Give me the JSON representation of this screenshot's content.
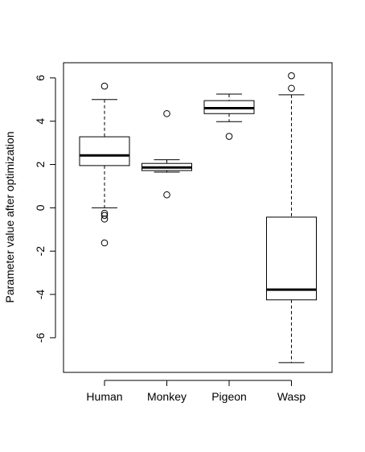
{
  "chart_data": {
    "type": "boxplot",
    "title": "",
    "xlabel": "",
    "ylabel": "Parameter value after optimization",
    "ylim": [
      -7.6,
      6.7
    ],
    "yticks": [
      -6,
      -4,
      -2,
      0,
      2,
      4,
      6
    ],
    "ytick_labels": [
      "-6",
      "-4",
      "-2",
      "0",
      "2",
      "4",
      "6"
    ],
    "categories": [
      "Human",
      "Monkey",
      "Pigeon",
      "Wasp"
    ],
    "boxes": [
      {
        "category": "Human",
        "whisker_low": 0.0,
        "q1": 1.95,
        "median": 2.42,
        "q3": 3.28,
        "whisker_high": 5.0,
        "outliers": [
          5.62,
          -0.25,
          -0.35,
          -0.52,
          -1.62
        ]
      },
      {
        "category": "Monkey",
        "whisker_low": 1.65,
        "q1": 1.72,
        "median": 1.86,
        "q3": 2.05,
        "whisker_high": 2.22,
        "outliers": [
          4.35,
          0.6
        ]
      },
      {
        "category": "Pigeon",
        "whisker_low": 3.98,
        "q1": 4.35,
        "median": 4.6,
        "q3": 4.95,
        "whisker_high": 5.25,
        "outliers": [
          3.3
        ]
      },
      {
        "category": "Wasp",
        "whisker_low": -7.15,
        "q1": -4.25,
        "median": -3.78,
        "q3": -0.43,
        "whisker_high": 5.22,
        "outliers": [
          6.1,
          5.52
        ]
      }
    ]
  }
}
